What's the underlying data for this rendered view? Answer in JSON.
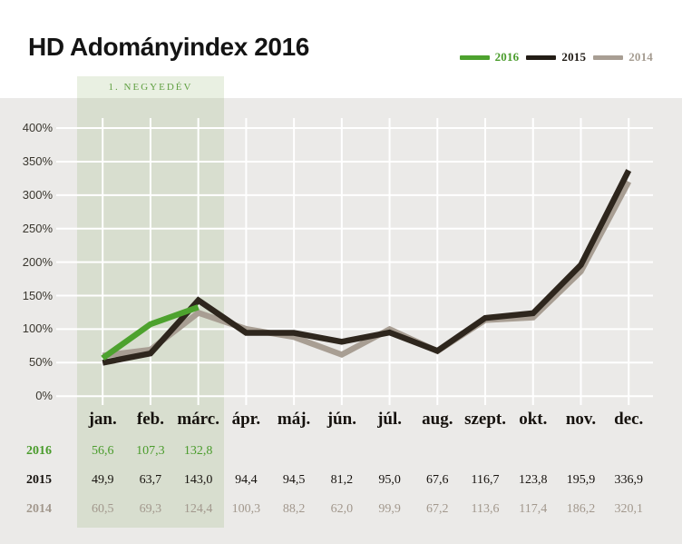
{
  "title": "HD Adományindex 2016",
  "quarter_label": "1. NEGYEDÉV",
  "colors": {
    "background": "#ffffff",
    "chart_background": "#ebeae8",
    "gridline": "#ffffff",
    "band": "rgba(125,166,84,0.17)",
    "band_label": "#61a043",
    "green": "#4da22e",
    "dark": "#2e261d",
    "taupe": "#a89e93"
  },
  "legend": [
    {
      "label": "2016",
      "color": "#4da22e",
      "text_color": "#4a9c2c"
    },
    {
      "label": "2015",
      "color": "#231d16",
      "text_color": "#1d1812"
    },
    {
      "label": "2014",
      "color": "#a89e93",
      "text_color": "#a59c91"
    }
  ],
  "chart_data": {
    "type": "line",
    "title": "HD Adományindex 2016",
    "categories": [
      "jan.",
      "feb.",
      "márc.",
      "ápr.",
      "máj.",
      "jún.",
      "júl.",
      "aug.",
      "szept.",
      "okt.",
      "nov.",
      "dec."
    ],
    "series": [
      {
        "name": "2016",
        "color": "#4da22e",
        "values": [
          56.6,
          107.3,
          132.8
        ]
      },
      {
        "name": "2015",
        "color": "#2e261d",
        "values": [
          49.9,
          63.7,
          143.0,
          94.4,
          94.5,
          81.2,
          95.0,
          67.6,
          116.7,
          123.8,
          195.9,
          336.9
        ]
      },
      {
        "name": "2014",
        "color": "#a89e93",
        "values": [
          60.5,
          69.3,
          124.4,
          100.3,
          88.2,
          62.0,
          99.9,
          67.2,
          113.6,
          117.4,
          186.2,
          320.1
        ]
      }
    ],
    "yticks": [
      "400%",
      "350%",
      "300%",
      "250%",
      "200%",
      "150%",
      "100%",
      "50%",
      "0%"
    ],
    "ylim": [
      0,
      400
    ],
    "grid": true,
    "legend_position": "top-right",
    "highlight_region": {
      "label": "1. NEGYEDÉV",
      "from": "jan.",
      "to": "márc."
    }
  },
  "table": {
    "columns": [
      "jan.",
      "feb.",
      "márc.",
      "ápr.",
      "máj.",
      "jún.",
      "júl.",
      "aug.",
      "szept.",
      "okt.",
      "nov.",
      "dec."
    ],
    "rows": [
      {
        "label": "2016",
        "color": "#4a9c2c",
        "values": [
          "56,6",
          "107,3",
          "132,8",
          "",
          "",
          "",
          "",
          "",
          "",
          "",
          "",
          ""
        ]
      },
      {
        "label": "2015",
        "color": "#17130f",
        "values": [
          "49,9",
          "63,7",
          "143,0",
          "94,4",
          "94,5",
          "81,2",
          "95,0",
          "67,6",
          "116,7",
          "123,8",
          "195,9",
          "336,9"
        ]
      },
      {
        "label": "2014",
        "color": "#a2988d",
        "values": [
          "60,5",
          "69,3",
          "124,4",
          "100,3",
          "88,2",
          "62,0",
          "99,9",
          "67,2",
          "113,6",
          "117,4",
          "186,2",
          "320,1"
        ]
      }
    ]
  }
}
